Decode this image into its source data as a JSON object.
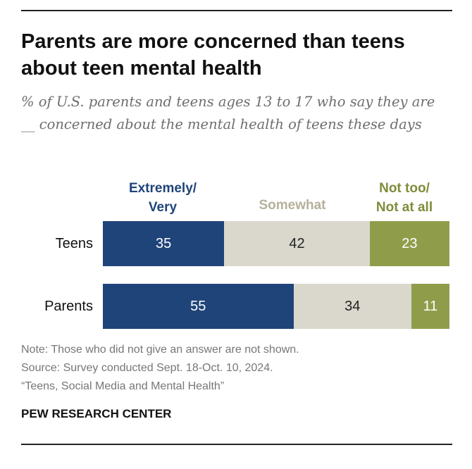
{
  "colors": {
    "extremely_very": "#1f4479",
    "somewhat": "#dad8cc",
    "not_too": "#8f9d4b",
    "somewhat_legend": "#b5b19c",
    "not_too_legend": "#7e8d3a"
  },
  "chart_data": {
    "type": "bar",
    "orientation": "horizontal",
    "stacked": true,
    "title": "Parents are more concerned than teens about teen mental health",
    "subtitle": "% of U.S. parents and teens ages 13 to 17 who say they are __ concerned about the mental health of teens these days",
    "categories": [
      "Teens",
      "Parents"
    ],
    "series": [
      {
        "name": "Extremely/ Very",
        "legend_lines": [
          "Extremely/",
          "Very"
        ],
        "values": [
          35,
          55
        ]
      },
      {
        "name": "Somewhat",
        "legend_lines": [
          "Somewhat"
        ],
        "values": [
          42,
          34
        ]
      },
      {
        "name": "Not too/ Not at all",
        "legend_lines": [
          "Not too/",
          "Not at all"
        ],
        "values": [
          23,
          11
        ]
      }
    ],
    "legend_position": "top",
    "grid": false
  },
  "notes": {
    "note": "Note: Those who did not give an answer are not shown.",
    "source": "Source: Survey conducted Sept. 18-Oct. 10, 2024.",
    "report": "“Teens, Social Media and Mental Health”"
  },
  "brand": "PEW RESEARCH CENTER"
}
